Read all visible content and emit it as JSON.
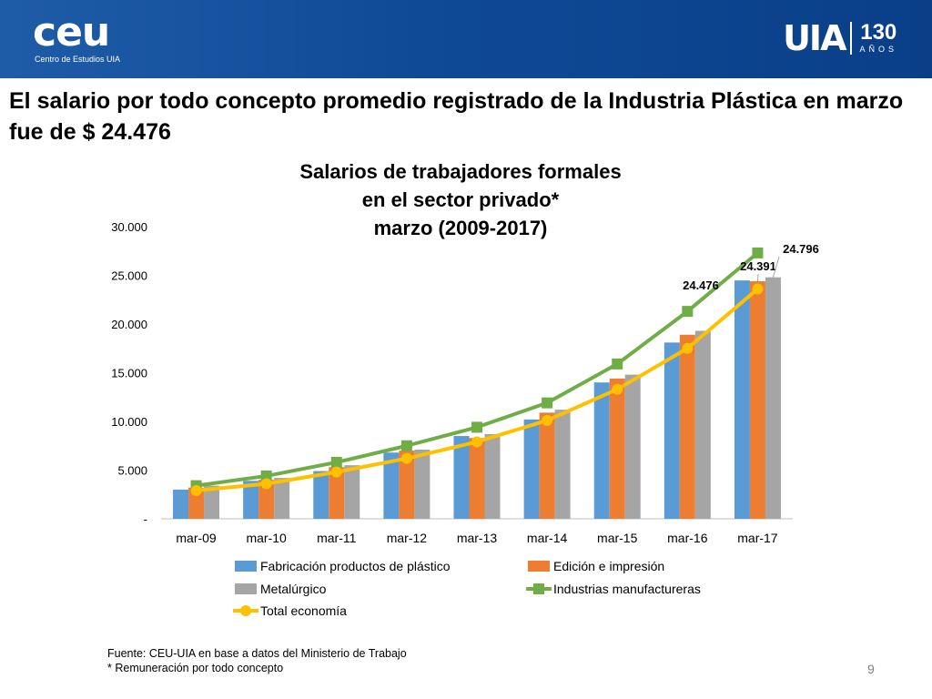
{
  "header": {
    "logo_left": {
      "text": "ceu",
      "subtitle": "Centro de Estudios UIA"
    },
    "logo_right": {
      "text": "UIA",
      "number": "130",
      "word": "AÑOS"
    },
    "colors": {
      "band": "#0f4a97"
    }
  },
  "headline": "El salario por todo concepto promedio registrado de la Industria Plástica en marzo fue de $ 24.476",
  "chart_data": {
    "type": "bar",
    "title_lines": [
      "Salarios de trabajadores formales",
      "en el sector privado*",
      "marzo (2009-2017)"
    ],
    "categories": [
      "mar-09",
      "mar-10",
      "mar-11",
      "mar-12",
      "mar-13",
      "mar-14",
      "mar-15",
      "mar-16",
      "mar-17"
    ],
    "ylim": [
      0,
      30000
    ],
    "y_ticks": [
      {
        "value": 0,
        "label": "-"
      },
      {
        "value": 5000,
        "label": "5.000"
      },
      {
        "value": 10000,
        "label": "10.000"
      },
      {
        "value": 15000,
        "label": "15.000"
      },
      {
        "value": 20000,
        "label": "20.000"
      },
      {
        "value": 25000,
        "label": "25.000"
      },
      {
        "value": 30000,
        "label": "30.000"
      }
    ],
    "bar_series": [
      {
        "name": "Fabricación productos de plástico",
        "color": "#5b9bd5",
        "values": [
          3000,
          3900,
          4900,
          6800,
          8500,
          10200,
          14000,
          18100,
          24476
        ]
      },
      {
        "name": "Edición e impresión",
        "color": "#ed7d31",
        "values": [
          3200,
          4000,
          5300,
          7000,
          8300,
          10900,
          14400,
          18900,
          24391
        ]
      },
      {
        "name": "Metalúrgico",
        "color": "#a5a5a5",
        "values": [
          3400,
          4200,
          5500,
          7100,
          8700,
          11200,
          14800,
          19300,
          24796
        ]
      }
    ],
    "line_series": [
      {
        "name": "Industrias manufactureras",
        "color": "#70ad47",
        "marker": "square",
        "values": [
          3400,
          4400,
          5800,
          7500,
          9400,
          11900,
          15900,
          21300,
          27300
        ]
      },
      {
        "name": "Total economía",
        "color": "#ffc000",
        "marker": "circle",
        "values": [
          2900,
          3600,
          4800,
          6200,
          7900,
          10100,
          13300,
          17500,
          23600
        ]
      }
    ],
    "data_labels": [
      {
        "text": "24.476",
        "series": 0,
        "category": 8
      },
      {
        "text": "24.391",
        "series": 1,
        "category": 8
      },
      {
        "text": "24.796",
        "series": 2,
        "category": 8
      }
    ],
    "legend_position": "bottom",
    "grid": false
  },
  "footnotes": [
    "Fuente: CEU-UIA en base a datos del Ministerio de Trabajo",
    "* Remuneración por todo concepto"
  ],
  "page_number": "9"
}
